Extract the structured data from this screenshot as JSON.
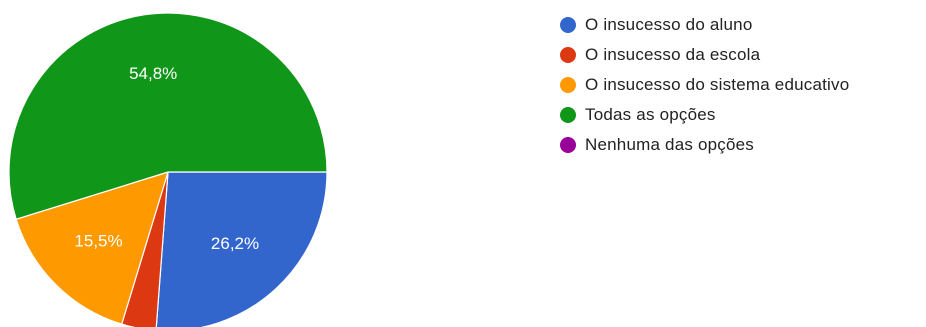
{
  "chart_data": {
    "type": "pie",
    "start_angle_deg": 90,
    "direction": "clockwise",
    "legend_position": "right",
    "slices": [
      {
        "label": "O insucesso do aluno",
        "value": 26.2,
        "color": "#3366cc",
        "data_label": "26,2%"
      },
      {
        "label": "O insucesso da escola",
        "value": 3.5,
        "color": "#dc3912",
        "data_label": ""
      },
      {
        "label": "O insucesso do sistema educativo",
        "value": 15.5,
        "color": "#ff9900",
        "data_label": "15,5%"
      },
      {
        "label": "Todas as opções",
        "value": 54.8,
        "color": "#109618",
        "data_label": "54,8%"
      },
      {
        "label": "Nenhuma das opções",
        "value": 0,
        "color": "#990099",
        "data_label": ""
      }
    ]
  }
}
